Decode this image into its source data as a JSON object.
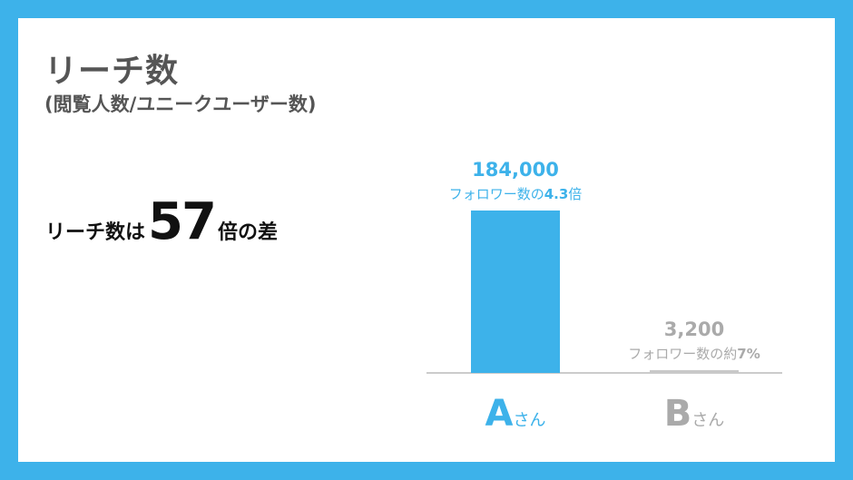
{
  "title": "リーチ数",
  "subtitle": "(閲覧人数/ユニークユーザー数)",
  "headline": {
    "prefix": "リーチ数は",
    "number": "57",
    "suffix": "倍の差"
  },
  "colors": {
    "frame": "#3DB2EA",
    "bar_a": "#3DB2EA",
    "bar_b": "#C8C8C8",
    "label_b": "#AAAAAA",
    "axis": "#BBBBBB",
    "text_dark": "#111111",
    "title": "#555555"
  },
  "chart_data": {
    "type": "bar",
    "categories": [
      "A",
      "B"
    ],
    "category_suffix": "さん",
    "values": [
      184000,
      3200
    ],
    "value_labels": [
      "184,000",
      "3,200"
    ],
    "annotations": [
      {
        "prefix": "フォロワー数の",
        "emphasis": "4.3",
        "suffix": "倍"
      },
      {
        "prefix": "フォロワー数の約",
        "emphasis": "7%",
        "suffix": ""
      }
    ],
    "ylim": [
      0,
      184000
    ],
    "grid": false,
    "legend": "none"
  }
}
